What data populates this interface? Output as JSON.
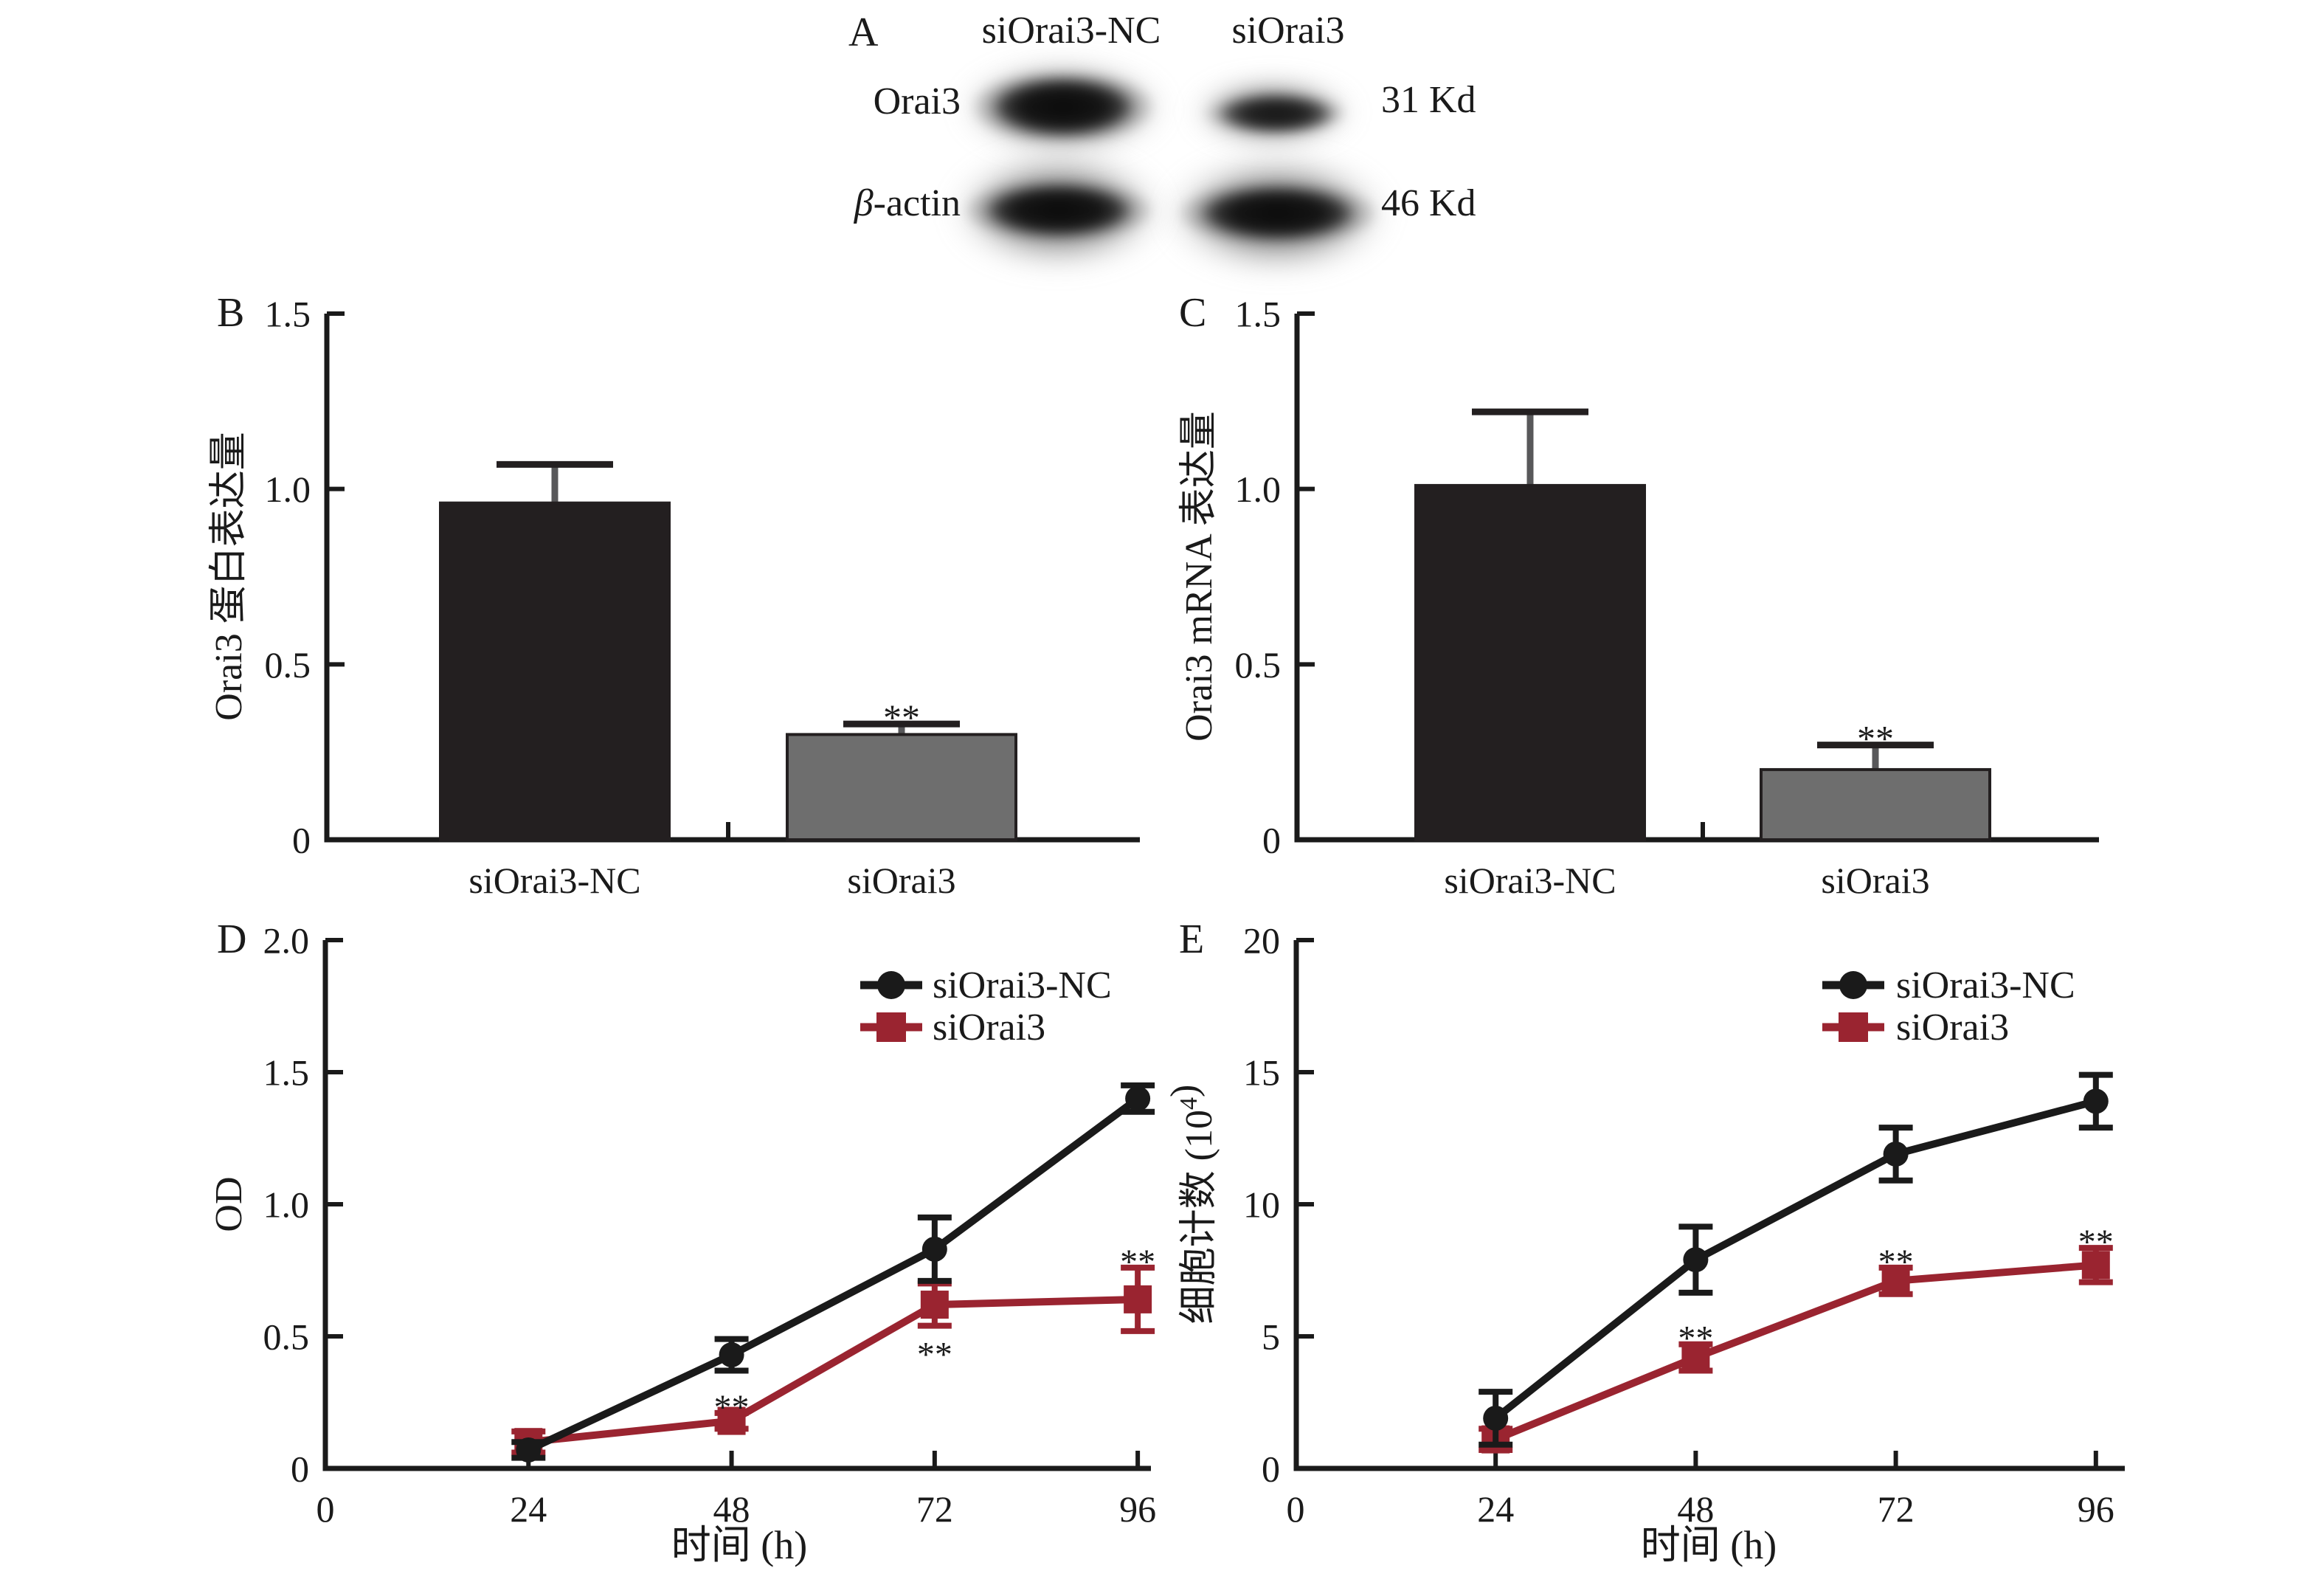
{
  "blot": {
    "panel_label": "A",
    "col_labels": [
      "siOrai3-NC",
      "siOrai3"
    ],
    "rows": [
      {
        "italic_prefix": "",
        "label": "Orai3",
        "size_label": "31 Kd"
      },
      {
        "italic_prefix": "β",
        "label": "-actin",
        "size_label": "46 Kd"
      }
    ]
  },
  "colors": {
    "axis": "#1a1a1a",
    "black_series": "#1a1a1a",
    "red_series": "#9a2430",
    "bar_black": "#231f20",
    "bar_gray": "#6e6e6e",
    "error_stem_gray": "#58585a"
  },
  "chart_data": [
    {
      "id": "panelB",
      "type": "bar",
      "panel_label": "B",
      "ylabel": "Orai3 蛋白表达量",
      "ylim": [
        0,
        1.5
      ],
      "yticks": [
        {
          "v": 0,
          "label": "0"
        },
        {
          "v": 0.5,
          "label": "0.5"
        },
        {
          "v": 1.0,
          "label": "1.0"
        },
        {
          "v": 1.5,
          "label": "1.5"
        }
      ],
      "categories": [
        "siOrai3-NC",
        "siOrai3"
      ],
      "values": [
        0.96,
        0.3
      ],
      "errors": [
        0.11,
        0.03
      ],
      "annotations": [
        "",
        "**"
      ],
      "bar_colors": [
        "#231f20",
        "#6e6e6e"
      ],
      "grid": false,
      "legend": "none"
    },
    {
      "id": "panelC",
      "type": "bar",
      "panel_label": "C",
      "ylabel": "Orai3 mRNA 表达量",
      "ylim": [
        0,
        1.5
      ],
      "yticks": [
        {
          "v": 0,
          "label": "0"
        },
        {
          "v": 0.5,
          "label": "0.5"
        },
        {
          "v": 1.0,
          "label": "1.0"
        },
        {
          "v": 1.5,
          "label": "1.5"
        }
      ],
      "categories": [
        "siOrai3-NC",
        "siOrai3"
      ],
      "values": [
        1.01,
        0.2
      ],
      "errors": [
        0.21,
        0.07
      ],
      "annotations": [
        "",
        "**"
      ],
      "bar_colors": [
        "#231f20",
        "#6e6e6e"
      ],
      "grid": false,
      "legend": "none"
    },
    {
      "id": "panelD",
      "type": "line",
      "panel_label": "D",
      "ylabel": "OD",
      "xlabel": "时间 (h)",
      "ylim": [
        0,
        2.0
      ],
      "yticks": [
        {
          "v": 0,
          "label": "0"
        },
        {
          "v": 0.5,
          "label": "0.5"
        },
        {
          "v": 1.0,
          "label": "1.0"
        },
        {
          "v": 1.5,
          "label": "1.5"
        },
        {
          "v": 2.0,
          "label": "2.0"
        }
      ],
      "xticks": [
        {
          "v": 0,
          "label": "0"
        },
        {
          "v": 24,
          "label": "24"
        },
        {
          "v": 48,
          "label": "48"
        },
        {
          "v": 72,
          "label": "72"
        },
        {
          "v": 96,
          "label": "96"
        }
      ],
      "x": [
        24,
        48,
        72,
        96
      ],
      "grid": false,
      "legend": "top-right",
      "series": [
        {
          "name": "siOrai3-NC",
          "marker": "circle",
          "color": "#1a1a1a",
          "values": [
            0.07,
            0.43,
            0.83,
            1.4
          ],
          "errors": [
            0.03,
            0.06,
            0.12,
            0.05
          ],
          "annotations": [
            "",
            "",
            "",
            ""
          ],
          "annotation_pos": [
            "",
            "",
            "",
            ""
          ]
        },
        {
          "name": "siOrai3",
          "marker": "square",
          "color": "#9a2430",
          "values": [
            0.1,
            0.18,
            0.62,
            0.64
          ],
          "errors": [
            0.04,
            0.03,
            0.08,
            0.12
          ],
          "annotations": [
            "",
            "**",
            "**",
            "**"
          ],
          "annotation_pos": [
            "",
            "above",
            "below",
            "above"
          ]
        }
      ]
    },
    {
      "id": "panelE",
      "type": "line",
      "panel_label": "E",
      "ylabel": "细胞计数 (10⁴)",
      "ylabel_parts": [
        {
          "t": "细胞计数 (10"
        },
        {
          "t": "4",
          "sup": true
        },
        {
          "t": ")"
        }
      ],
      "xlabel": "时间 (h)",
      "ylim": [
        0,
        20
      ],
      "yticks": [
        {
          "v": 0,
          "label": "0"
        },
        {
          "v": 5,
          "label": "5"
        },
        {
          "v": 10,
          "label": "10"
        },
        {
          "v": 15,
          "label": "15"
        },
        {
          "v": 20,
          "label": "20"
        }
      ],
      "xticks": [
        {
          "v": 0,
          "label": "0"
        },
        {
          "v": 24,
          "label": "24"
        },
        {
          "v": 48,
          "label": "48"
        },
        {
          "v": 72,
          "label": "72"
        },
        {
          "v": 96,
          "label": "96"
        }
      ],
      "x": [
        24,
        48,
        72,
        96
      ],
      "grid": false,
      "legend": "top-right",
      "series": [
        {
          "name": "siOrai3-NC",
          "marker": "circle",
          "color": "#1a1a1a",
          "values": [
            1.9,
            7.9,
            11.9,
            13.9
          ],
          "errors": [
            1.0,
            1.25,
            1.0,
            1.0
          ],
          "annotations": [
            "",
            "",
            "",
            ""
          ],
          "annotation_pos": [
            "",
            "",
            "",
            ""
          ]
        },
        {
          "name": "siOrai3",
          "marker": "square",
          "color": "#9a2430",
          "values": [
            1.1,
            4.2,
            7.1,
            7.7
          ],
          "errors": [
            0.4,
            0.5,
            0.5,
            0.65
          ],
          "annotations": [
            "",
            "**",
            "**",
            "**"
          ],
          "annotation_pos": [
            "",
            "above",
            "above",
            "above"
          ]
        }
      ]
    }
  ]
}
